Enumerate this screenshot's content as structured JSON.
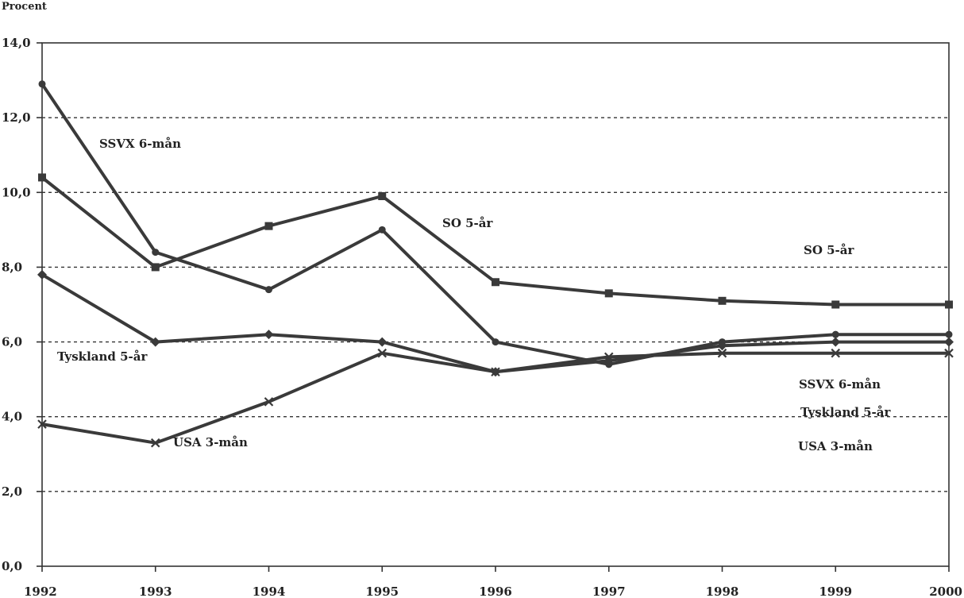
{
  "chart_data": {
    "type": "line",
    "title": "",
    "unit_label": "Procent",
    "xlabel": "",
    "ylabel": "",
    "x": [
      "1992",
      "1993",
      "1994",
      "1995",
      "1996",
      "1997",
      "1998",
      "1999",
      "2000"
    ],
    "ylim": [
      0,
      14
    ],
    "yticks": [
      "0,0",
      "2,0",
      "4,0",
      "6,0",
      "8,0",
      "10,0",
      "12,0",
      "14,0"
    ],
    "grid": true,
    "series": [
      {
        "name": "SO 5-år",
        "values": [
          10.4,
          8.0,
          9.1,
          9.9,
          7.6,
          7.3,
          7.1,
          7.0,
          7.0
        ],
        "marker": "square"
      },
      {
        "name": "SSVX 6-mån",
        "values": [
          12.9,
          8.4,
          7.4,
          9.0,
          6.0,
          5.4,
          6.0,
          6.2,
          6.2
        ],
        "marker": "circle"
      },
      {
        "name": "Tyskland 5-år",
        "values": [
          7.8,
          6.0,
          6.2,
          6.0,
          5.2,
          5.5,
          5.9,
          6.0,
          6.0
        ],
        "marker": "diamond"
      },
      {
        "name": "USA 3-mån",
        "values": [
          3.8,
          3.3,
          4.4,
          5.7,
          5.2,
          5.6,
          5.7,
          5.7,
          5.7
        ],
        "marker": "cross"
      }
    ],
    "annotations": [
      {
        "text": "SSVX 6-mån",
        "series": "SSVX 6-mån",
        "side": "left"
      },
      {
        "text": "SO 5-år",
        "series": "SO 5-år",
        "side": "middle"
      },
      {
        "text": "Tyskland 5-år",
        "series": "Tyskland 5-år",
        "side": "left"
      },
      {
        "text": "USA 3-mån",
        "series": "USA 3-mån",
        "side": "left"
      },
      {
        "text": "SO 5-år",
        "series": "SO 5-år",
        "side": "right"
      },
      {
        "text": "SSVX 6-mån",
        "series": "SSVX 6-mån",
        "side": "right"
      },
      {
        "text": "Tyskland 5-år",
        "series": "Tyskland 5-år",
        "side": "right"
      },
      {
        "text": "USA 3-mån",
        "series": "USA 3-mån",
        "side": "right"
      }
    ]
  }
}
